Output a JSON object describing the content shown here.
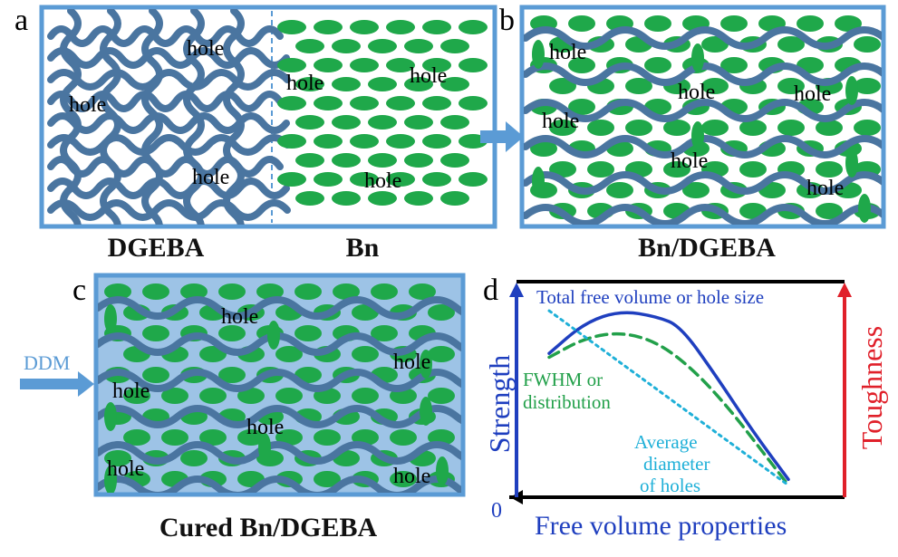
{
  "panels": {
    "a": {
      "letter": "a",
      "caption_left": "DGEBA",
      "caption_right": "Bn",
      "holes_left": [
        "hole",
        "hole",
        "hole"
      ],
      "holes_right": [
        "hole",
        "hole",
        "hole"
      ]
    },
    "b": {
      "letter": "b",
      "caption": "Bn/DGEBA",
      "holes": [
        "hole",
        "hole",
        "hole",
        "hole",
        "hole",
        "hole"
      ]
    },
    "c": {
      "letter": "c",
      "caption": "Cured Bn/DGEBA",
      "reagent": "DDM",
      "holes": [
        "hole",
        "hole",
        "hole",
        "hole",
        "hole",
        "hole"
      ]
    },
    "d": {
      "letter": "d"
    }
  },
  "colors": {
    "polymer": "#4a75a0",
    "filler": "#1fa84a",
    "frame": "#5b9bd5",
    "cured_fill": "#9dc3e6",
    "strength": "#1f3fbf",
    "toughness": "#e0202a",
    "fwhm": "#22a04a",
    "avg_diameter": "#1fb0d8"
  },
  "chart_data": {
    "type": "line",
    "title": "",
    "xlabel": "Free volume properties",
    "ylabel_left": "Strength",
    "ylabel_right": "Toughness",
    "origin_label": "0",
    "series": [
      {
        "name": "Total free volume or hole size",
        "style": "solid",
        "color": "#1f3fbf",
        "x": [
          0.0,
          0.15,
          0.3,
          0.45,
          0.55,
          0.7,
          0.85,
          1.0
        ],
        "y": [
          0.7,
          0.86,
          0.92,
          0.89,
          0.84,
          0.58,
          0.3,
          0.05
        ]
      },
      {
        "name": "FWHM or distribution",
        "style": "dashed",
        "color": "#22a04a",
        "x": [
          0.0,
          0.15,
          0.3,
          0.45,
          0.6,
          0.75,
          0.9,
          1.0
        ],
        "y": [
          0.68,
          0.78,
          0.81,
          0.76,
          0.62,
          0.42,
          0.18,
          0.02
        ]
      },
      {
        "name": "Average diameter of holes",
        "style": "dotted",
        "color": "#1fb0d8",
        "x": [
          0.0,
          1.0
        ],
        "y": [
          0.92,
          0.02
        ]
      }
    ],
    "labels": {
      "total": "Total free volume or hole size",
      "fwhm_1": "FWHM or",
      "fwhm_2": "distribution",
      "avg_1": "Average",
      "avg_2": "diameter",
      "avg_3": "of holes"
    }
  }
}
